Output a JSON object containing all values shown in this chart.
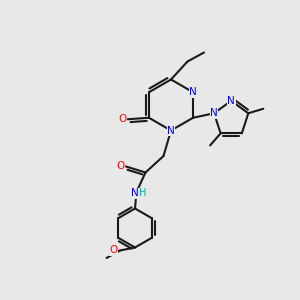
{
  "bg_color": "#e8e8e8",
  "figsize": [
    3.0,
    3.0
  ],
  "dpi": 100,
  "bond_color": "#1a1a1a",
  "bond_lw": 1.5,
  "atom_colors": {
    "N": "#0000ff",
    "O": "#ff0000",
    "H": "#00aaaa",
    "C": "#1a1a1a"
  },
  "font_size": 7.5
}
